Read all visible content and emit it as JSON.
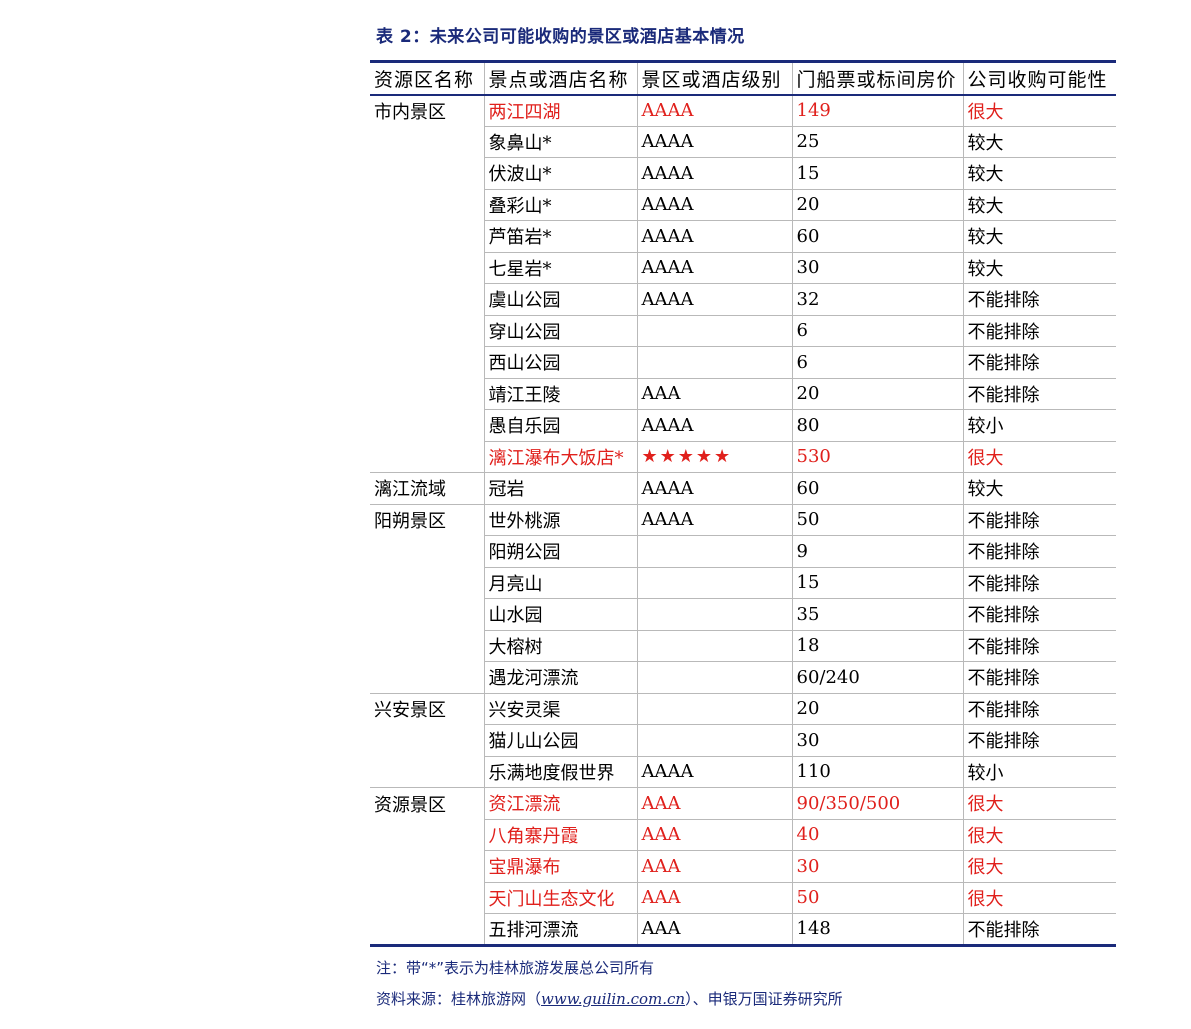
{
  "title": "表 2：未来公司可能收购的景区或酒店基本情况",
  "headers": [
    "资源区名称",
    "景点或酒店名称",
    "景区或酒店级别",
    "门船票或标间房价",
    "公司收购可能性"
  ],
  "colors": {
    "accent": "#1a2a7a",
    "highlight": "#e0201c",
    "grid": "#b9b9b9"
  },
  "rows": [
    {
      "area": "市内景区",
      "name": "两江四湖",
      "level": "AAAA",
      "price": "149",
      "possibility": "很大",
      "highlight": true
    },
    {
      "area": "",
      "name": "象鼻山*",
      "level": "AAAA",
      "price": "25",
      "possibility": "较大",
      "highlight": false
    },
    {
      "area": "",
      "name": "伏波山*",
      "level": "AAAA",
      "price": "15",
      "possibility": "较大",
      "highlight": false
    },
    {
      "area": "",
      "name": "叠彩山*",
      "level": "AAAA",
      "price": "20",
      "possibility": "较大",
      "highlight": false
    },
    {
      "area": "",
      "name": "芦笛岩*",
      "level": "AAAA",
      "price": "60",
      "possibility": "较大",
      "highlight": false
    },
    {
      "area": "",
      "name": "七星岩*",
      "level": "AAAA",
      "price": "30",
      "possibility": "较大",
      "highlight": false
    },
    {
      "area": "",
      "name": "虞山公园",
      "level": "AAAA",
      "price": "32",
      "possibility": "不能排除",
      "highlight": false
    },
    {
      "area": "",
      "name": "穿山公园",
      "level": "",
      "price": "6",
      "possibility": "不能排除",
      "highlight": false
    },
    {
      "area": "",
      "name": "西山公园",
      "level": "",
      "price": "6",
      "possibility": "不能排除",
      "highlight": false
    },
    {
      "area": "",
      "name": "靖江王陵",
      "level": "AAA",
      "price": "20",
      "possibility": "不能排除",
      "highlight": false
    },
    {
      "area": "",
      "name": "愚自乐园",
      "level": "AAAA",
      "price": "80",
      "possibility": "较小",
      "highlight": false
    },
    {
      "area": "",
      "name": "漓江瀑布大饭店*",
      "level": "★★★★★",
      "price": "530",
      "possibility": "很大",
      "highlight": true
    },
    {
      "area": "漓江流域",
      "name": "冠岩",
      "level": "AAAA",
      "price": "60",
      "possibility": "较大",
      "highlight": false
    },
    {
      "area": "阳朔景区",
      "name": "世外桃源",
      "level": "AAAA",
      "price": "50",
      "possibility": "不能排除",
      "highlight": false
    },
    {
      "area": "",
      "name": "阳朔公园",
      "level": "",
      "price": "9",
      "possibility": "不能排除",
      "highlight": false
    },
    {
      "area": "",
      "name": "月亮山",
      "level": "",
      "price": "15",
      "possibility": "不能排除",
      "highlight": false
    },
    {
      "area": "",
      "name": "山水园",
      "level": "",
      "price": "35",
      "possibility": "不能排除",
      "highlight": false
    },
    {
      "area": "",
      "name": "大榕树",
      "level": "",
      "price": "18",
      "possibility": "不能排除",
      "highlight": false
    },
    {
      "area": "",
      "name": "遇龙河漂流",
      "level": "",
      "price": "60/240",
      "possibility": "不能排除",
      "highlight": false
    },
    {
      "area": "兴安景区",
      "name": "兴安灵渠",
      "level": "",
      "price": "20",
      "possibility": "不能排除",
      "highlight": false
    },
    {
      "area": "",
      "name": "猫儿山公园",
      "level": "",
      "price": "30",
      "possibility": "不能排除",
      "highlight": false
    },
    {
      "area": "",
      "name": "乐满地度假世界",
      "level": "AAAA",
      "price": "110",
      "possibility": "较小",
      "highlight": false
    },
    {
      "area": "资源景区",
      "name": "资江漂流",
      "level": "AAA",
      "price": "90/350/500",
      "possibility": "很大",
      "highlight": true
    },
    {
      "area": "",
      "name": "八角寨丹霞",
      "level": "AAA",
      "price": "40",
      "possibility": "很大",
      "highlight": true
    },
    {
      "area": "",
      "name": "宝鼎瀑布",
      "level": "AAA",
      "price": "30",
      "possibility": "很大",
      "highlight": true
    },
    {
      "area": "",
      "name": "天门山生态文化",
      "level": "AAA",
      "price": "50",
      "possibility": "很大",
      "highlight": true
    },
    {
      "area": "",
      "name": "五排河漂流",
      "level": "AAA",
      "price": "148",
      "possibility": "不能排除",
      "highlight": false
    }
  ],
  "notes": {
    "note": "注：带“*”表示为桂林旅游发展总公司所有",
    "source_prefix": "资料来源：桂林旅游网（",
    "source_link": "www.guilin.com.cn",
    "source_suffix": "）、申银万国证券研究所"
  }
}
